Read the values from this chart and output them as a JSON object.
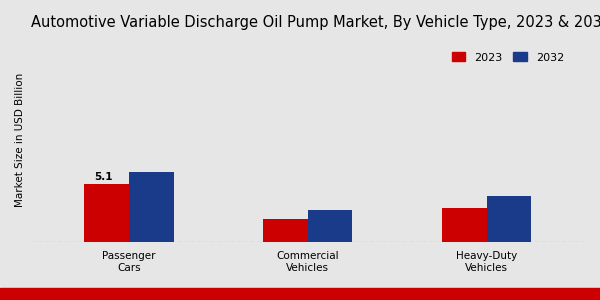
{
  "title": "Automotive Variable Discharge Oil Pump Market, By Vehicle Type, 2023 & 203",
  "ylabel": "Market Size in USD Billion",
  "categories": [
    "Passenger\nCars",
    "Commercial\nVehicles",
    "Heavy-Duty\nVehicles"
  ],
  "values_2023": [
    5.1,
    2.0,
    3.0
  ],
  "values_2032": [
    6.2,
    2.8,
    4.0
  ],
  "color_2023": "#cc0000",
  "color_2032": "#1a3a8a",
  "annotation_text": "5.1",
  "background_color": "#e6e6e6",
  "legend_labels": [
    "2023",
    "2032"
  ],
  "bar_width": 0.25,
  "ylim": [
    0,
    18
  ],
  "title_fontsize": 10.5,
  "label_fontsize": 7.5,
  "tick_fontsize": 7.5,
  "legend_fontsize": 8
}
